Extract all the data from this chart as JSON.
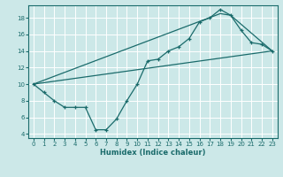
{
  "bg_color": "#cce8e8",
  "line_color": "#1a6b6b",
  "xlabel": "Humidex (Indice chaleur)",
  "xlim": [
    -0.5,
    23.5
  ],
  "ylim": [
    3.5,
    19.5
  ],
  "yticks": [
    4,
    6,
    8,
    10,
    12,
    14,
    16,
    18
  ],
  "xticks": [
    0,
    1,
    2,
    3,
    4,
    5,
    6,
    7,
    8,
    9,
    10,
    11,
    12,
    13,
    14,
    15,
    16,
    17,
    18,
    19,
    20,
    21,
    22,
    23
  ],
  "curve1_x": [
    0,
    1,
    2,
    3,
    4,
    5,
    6,
    7,
    8,
    9,
    10,
    11,
    12,
    13,
    14,
    15,
    16,
    17,
    18,
    19,
    20,
    21,
    22,
    23
  ],
  "curve1_y": [
    10.0,
    9.0,
    8.0,
    7.2,
    7.2,
    7.2,
    4.5,
    4.5,
    5.8,
    8.0,
    10.0,
    12.8,
    13.0,
    14.0,
    14.5,
    15.5,
    17.5,
    18.0,
    19.0,
    18.3,
    16.5,
    15.0,
    14.8,
    14.0
  ],
  "curve2_x": [
    0,
    23
  ],
  "curve2_y": [
    10.0,
    14.0
  ],
  "curve3_x": [
    0,
    18,
    19,
    23
  ],
  "curve3_y": [
    10.0,
    18.5,
    18.3,
    14.0
  ]
}
